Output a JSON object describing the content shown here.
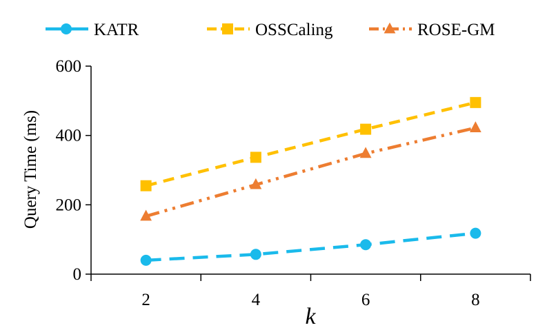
{
  "chart_data": {
    "type": "line",
    "title": "",
    "xlabel": "k",
    "ylabel": "Query Time (ms)",
    "x": [
      2,
      4,
      6,
      8
    ],
    "xlim": [
      1,
      9
    ],
    "xticks": [
      2,
      4,
      6,
      8
    ],
    "ylim": [
      0,
      600
    ],
    "yticks": [
      0,
      200,
      400,
      600
    ],
    "grid": false,
    "legend": "top",
    "series": [
      {
        "name": "KATR",
        "values": [
          40,
          57,
          85,
          118
        ],
        "color": "#1ABAEB",
        "marker": "circle",
        "dash": "long-dash"
      },
      {
        "name": "OSSCaling",
        "values": [
          255,
          337,
          418,
          495
        ],
        "color": "#FFC000",
        "marker": "square",
        "dash": "dash"
      },
      {
        "name": "ROSE-GM",
        "values": [
          167,
          258,
          348,
          422
        ],
        "color": "#ED7D31",
        "marker": "triangle",
        "dash": "dash-dot-dot"
      }
    ]
  }
}
